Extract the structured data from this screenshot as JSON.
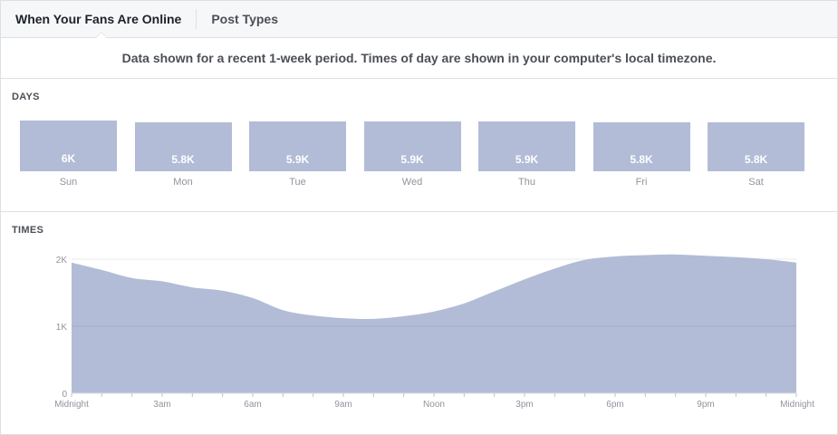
{
  "tabs": [
    {
      "label": "When Your Fans Are Online",
      "active": true
    },
    {
      "label": "Post Types",
      "active": false
    }
  ],
  "info_text": "Data shown for a recent 1-week period. Times of day are shown in your computer's local timezone.",
  "colors": {
    "area": "#b2bcd6",
    "grid": "#e9ebee",
    "axis": "#90949c"
  },
  "chart_data": [
    {
      "type": "bar",
      "section_title": "DAYS",
      "categories": [
        "Sun",
        "Mon",
        "Tue",
        "Wed",
        "Thu",
        "Fri",
        "Sat"
      ],
      "value_labels": [
        "6K",
        "5.8K",
        "5.9K",
        "5.9K",
        "5.9K",
        "5.8K",
        "5.8K"
      ],
      "values": [
        6000,
        5800,
        5900,
        5900,
        5900,
        5800,
        5800
      ]
    },
    {
      "type": "area",
      "section_title": "TIMES",
      "ylim": [
        0,
        2000
      ],
      "y_ticks": [
        0,
        1000,
        2000
      ],
      "y_tick_labels": [
        "0",
        "1K",
        "2K"
      ],
      "x": [
        0,
        1,
        2,
        3,
        4,
        5,
        6,
        7,
        8,
        9,
        10,
        11,
        12,
        13,
        14,
        15,
        16,
        17,
        18,
        19,
        20,
        21,
        22,
        23,
        24
      ],
      "x_tick_labels": [
        {
          "x": 0,
          "label": "Midnight"
        },
        {
          "x": 3,
          "label": "3am"
        },
        {
          "x": 6,
          "label": "6am"
        },
        {
          "x": 9,
          "label": "9am"
        },
        {
          "x": 12,
          "label": "Noon"
        },
        {
          "x": 15,
          "label": "3pm"
        },
        {
          "x": 18,
          "label": "6pm"
        },
        {
          "x": 21,
          "label": "9pm"
        },
        {
          "x": 24,
          "label": "Midnight"
        }
      ],
      "values": [
        1950,
        1840,
        1720,
        1670,
        1580,
        1530,
        1420,
        1240,
        1160,
        1120,
        1110,
        1150,
        1220,
        1340,
        1520,
        1700,
        1860,
        1990,
        2040,
        2060,
        2070,
        2050,
        2030,
        2000,
        1950
      ]
    }
  ]
}
